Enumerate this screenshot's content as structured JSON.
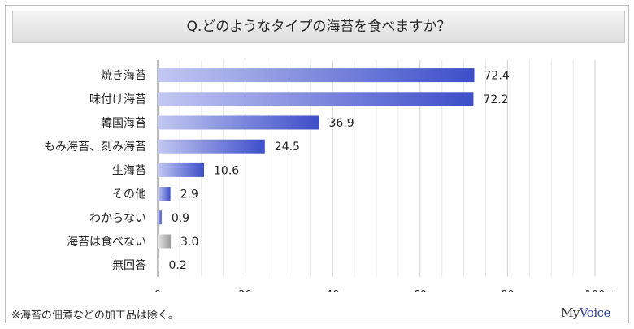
{
  "title": "Q.どのようなタイプの海苔を食べますか？",
  "footnote": "※海苔の佃煮などの加工品は除く。",
  "brand": {
    "part1": "My",
    "part2": "Voice"
  },
  "chart_data": {
    "type": "bar",
    "orientation": "horizontal",
    "categories": [
      "焼き海苔",
      "味付け海苔",
      "韓国海苔",
      "もみ海苔、刻み海苔",
      "生海苔",
      "その他",
      "わからない",
      "海苔は食べない",
      "無回答"
    ],
    "values": [
      72.4,
      72.2,
      36.9,
      24.5,
      10.6,
      2.9,
      0.9,
      3.0,
      0.2
    ],
    "value_labels": [
      "72.4",
      "72.2",
      "36.9",
      "24.5",
      "10.6",
      "2.9",
      "0.9",
      "3.0",
      "0.2"
    ],
    "bar_colors": [
      "#4a5bd6",
      "#4a5bd6",
      "#4a5bd6",
      "#4a5bd6",
      "#4a5bd6",
      "#4a5bd6",
      "#4a5bd6",
      "#a8a8a8",
      "#a8a8a8"
    ],
    "x_ticks": [
      "0",
      "20",
      "40",
      "60",
      "80",
      "100"
    ],
    "x_unit": "%",
    "xlim": [
      0,
      100
    ],
    "grid": true
  }
}
